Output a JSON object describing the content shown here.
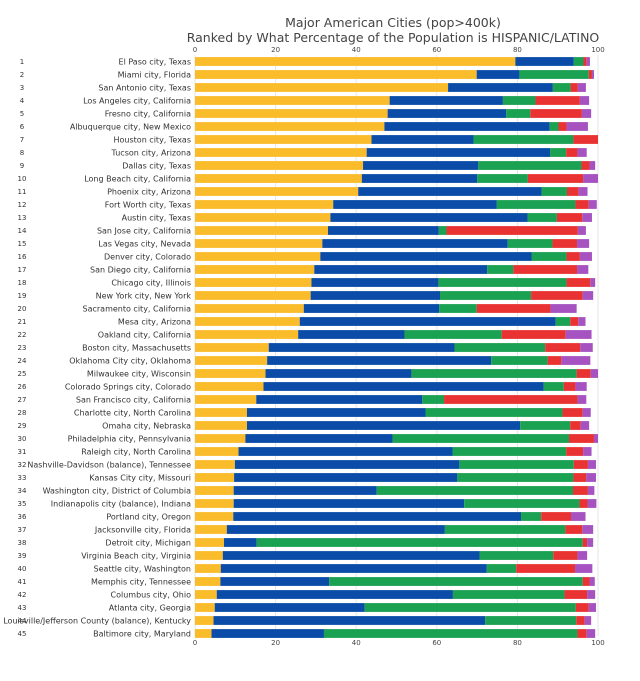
{
  "chart_data": {
    "type": "bar",
    "orientation": "horizontal",
    "stacked": true,
    "title": "Major American Cities (pop>400k)",
    "subtitle": "Ranked by What Percentage of the Population is HISPANIC/LATINO",
    "xlabel": "",
    "ylabel": "",
    "xlim": [
      0,
      100
    ],
    "x_ticks": [
      0,
      20,
      40,
      60,
      80,
      100
    ],
    "grid": true,
    "legend": "none",
    "ranks": [
      1,
      2,
      3,
      4,
      5,
      6,
      7,
      8,
      9,
      10,
      11,
      12,
      13,
      14,
      15,
      16,
      17,
      18,
      19,
      20,
      21,
      22,
      23,
      24,
      25,
      26,
      27,
      28,
      29,
      30,
      31,
      32,
      33,
      34,
      35,
      36,
      37,
      38,
      39,
      40,
      41,
      42,
      43,
      44,
      45
    ],
    "categories": [
      "El Paso city, Texas",
      "Miami city, Florida",
      "San Antonio city, Texas",
      "Los Angeles city, California",
      "Fresno city, California",
      "Albuquerque city, New Mexico",
      "Houston city, Texas",
      "Tucson city, Arizona",
      "Dallas city, Texas",
      "Long Beach city, California",
      "Phoenix city, Arizona",
      "Fort Worth city, Texas",
      "Austin city, Texas",
      "San Jose city, California",
      "Las Vegas city, Nevada",
      "Denver city, Colorado",
      "San Diego city, California",
      "Chicago city, Illinois",
      "New York city, New York",
      "Sacramento city, California",
      "Mesa city, Arizona",
      "Oakland city, California",
      "Boston city, Massachusetts",
      "Oklahoma City city, Oklahoma",
      "Milwaukee city, Wisconsin",
      "Colorado Springs city, Colorado",
      "San Francisco city, California",
      "Charlotte city, North Carolina",
      "Omaha city, Nebraska",
      "Philadelphia city, Pennsylvania",
      "Raleigh city, North Carolina",
      "Nashville-Davidson (balance), Tennessee",
      "Kansas City city, Missouri",
      "Washington city, District of Columbia",
      "Indianapolis city (balance), Indiana",
      "Portland city, Oregon",
      "Jacksonville city, Florida",
      "Detroit city, Michigan",
      "Virginia Beach city, Virginia",
      "Seattle city, Washington",
      "Memphis city, Tennessee",
      "Columbus city, Ohio",
      "Atlanta city, Georgia",
      "Louisville/Jefferson County (balance), Kentucky",
      "Baltimore city, Maryland"
    ],
    "series": [
      {
        "color": "#fbbc2c",
        "values": [
          79.5,
          69.9,
          62.8,
          48.3,
          47.8,
          47.0,
          43.8,
          42.6,
          41.7,
          41.4,
          40.5,
          34.3,
          33.6,
          33.0,
          31.6,
          31.1,
          29.6,
          28.9,
          28.7,
          27.0,
          26.0,
          25.6,
          18.3,
          17.9,
          17.5,
          17.0,
          15.2,
          12.9,
          12.9,
          12.5,
          10.8,
          9.9,
          9.7,
          9.6,
          9.6,
          9.5,
          7.9,
          7.2,
          6.9,
          6.4,
          6.3,
          5.4,
          4.9,
          4.6,
          4.1
        ]
      },
      {
        "color": "#0a4ca8",
        "values": [
          14.5,
          10.6,
          26.0,
          28.1,
          29.4,
          41.0,
          25.3,
          45.5,
          28.6,
          28.6,
          45.5,
          40.6,
          48.9,
          27.5,
          46.0,
          52.4,
          42.9,
          31.5,
          32.1,
          33.6,
          63.5,
          26.4,
          46.1,
          55.6,
          36.2,
          69.5,
          41.2,
          44.3,
          67.8,
          36.5,
          53.1,
          55.7,
          55.4,
          35.5,
          57.2,
          71.4,
          54.1,
          8.1,
          63.7,
          66.0,
          27.0,
          58.6,
          37.2,
          67.4,
          27.9
        ]
      },
      {
        "color": "#1aa152",
        "values": [
          2.4,
          17.2,
          4.4,
          8.1,
          6.0,
          2.2,
          24.8,
          4.0,
          25.6,
          12.6,
          6.3,
          19.5,
          7.3,
          1.9,
          11.1,
          8.7,
          6.5,
          31.8,
          22.6,
          9.3,
          3.6,
          24.1,
          22.5,
          14.0,
          41.0,
          5.0,
          5.4,
          34.0,
          12.4,
          43.8,
          28.2,
          28.4,
          28.8,
          48.7,
          28.6,
          5.0,
          29.9,
          80.9,
          18.3,
          7.3,
          62.9,
          27.7,
          52.4,
          22.6,
          62.9
        ]
      },
      {
        "color": "#e93333",
        "values": [
          0.8,
          0.8,
          1.8,
          11.0,
          12.8,
          2.0,
          7.0,
          2.8,
          2.0,
          13.7,
          2.9,
          3.3,
          6.3,
          32.6,
          6.1,
          3.3,
          15.8,
          5.9,
          12.8,
          18.3,
          2.0,
          15.9,
          8.7,
          3.4,
          3.5,
          2.9,
          33.1,
          5.0,
          2.6,
          6.2,
          4.2,
          3.5,
          3.2,
          3.7,
          2.0,
          7.4,
          4.2,
          1.1,
          6.0,
          14.6,
          1.7,
          5.6,
          3.2,
          2.1,
          2.3
        ]
      },
      {
        "color": "#a653c1",
        "values": [
          0.8,
          0.5,
          2.0,
          2.3,
          2.3,
          5.3,
          2.0,
          2.3,
          1.4,
          3.8,
          2.2,
          2.0,
          2.4,
          2.0,
          3.0,
          3.0,
          2.8,
          1.2,
          2.6,
          6.5,
          1.8,
          6.4,
          3.1,
          7.2,
          2.2,
          2.8,
          2.2,
          2.0,
          2.1,
          2.6,
          2.1,
          2.0,
          2.4,
          1.6,
          2.2,
          3.6,
          2.7,
          1.5,
          2.4,
          4.3,
          1.3,
          2.0,
          1.8,
          1.6,
          2.1
        ]
      }
    ]
  }
}
